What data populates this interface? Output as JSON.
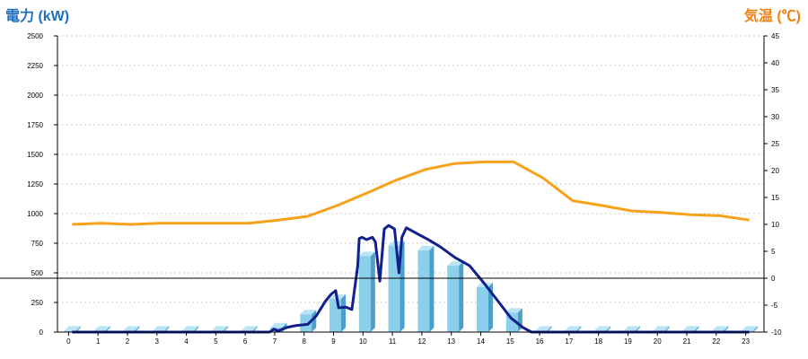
{
  "colors": {
    "power_title": "#1f6fc0",
    "temp_title": "#f08010",
    "bar_face": "#8ccfea",
    "bar_side": "#4b9fc8",
    "bar_top": "#b8e4f5",
    "power_line": "#10208c",
    "temp_line": "#f7a21a",
    "grid": "#c8c8c8",
    "axis": "#000000"
  },
  "chart_data": {
    "type": "bar",
    "title_left": "電力 (kW)",
    "title_right": "気温 (℃)",
    "grid": true,
    "y_left": {
      "range": [
        0,
        2500
      ],
      "ticks": [
        "0",
        "250",
        "500",
        "750",
        "1000",
        "1250",
        "1500",
        "1750",
        "2000",
        "2250",
        "2500"
      ]
    },
    "y_right": {
      "range": [
        -10,
        45
      ],
      "ticks": [
        "-10",
        "-5",
        "0",
        "5",
        "10",
        "15",
        "20",
        "25",
        "30",
        "35",
        "40",
        "45"
      ]
    },
    "categories": [
      "0",
      "1",
      "2",
      "3",
      "4",
      "5",
      "6",
      "7",
      "8",
      "9",
      "10",
      "11",
      "12",
      "13",
      "14",
      "15",
      "16",
      "17",
      "18",
      "19",
      "20",
      "21",
      "22",
      "23"
    ],
    "bars": {
      "axis": "left",
      "values": [
        12,
        12,
        12,
        12,
        12,
        12,
        12,
        40,
        150,
        280,
        640,
        730,
        690,
        560,
        380,
        165,
        12,
        12,
        12,
        12,
        12,
        12,
        12,
        12
      ]
    },
    "power_line": {
      "axis": "left",
      "x": [
        0,
        1,
        2,
        3,
        4,
        5,
        6,
        6.7,
        6.85,
        7,
        7.3,
        7.6,
        8.0,
        8.3,
        8.6,
        8.8,
        8.95,
        9.05,
        9.3,
        9.5,
        9.7,
        9.75,
        9.85,
        10.0,
        10.2,
        10.3,
        10.45,
        10.6,
        10.75,
        10.95,
        11.1,
        11.2,
        11.35,
        11.5,
        11.8,
        12.1,
        12.5,
        13.0,
        13.5,
        14.0,
        14.5,
        14.9,
        15.3,
        15.6,
        16,
        17,
        18,
        19,
        20,
        21,
        22,
        23
      ],
      "y": [
        0,
        0,
        0,
        0,
        0,
        0,
        0,
        0,
        25,
        10,
        40,
        55,
        65,
        140,
        260,
        320,
        350,
        205,
        210,
        190,
        560,
        790,
        800,
        780,
        800,
        760,
        430,
        870,
        900,
        870,
        500,
        800,
        880,
        860,
        820,
        780,
        720,
        630,
        560,
        410,
        250,
        120,
        40,
        0,
        0,
        0,
        0,
        0,
        0,
        0,
        0,
        0
      ]
    },
    "temperature_line": {
      "axis": "right",
      "x": [
        0,
        1,
        2,
        3,
        4,
        5,
        6,
        7,
        8,
        9,
        10,
        11,
        12,
        13,
        14,
        15,
        16,
        17,
        18,
        19,
        20,
        21,
        22,
        23
      ],
      "y": [
        10,
        10.2,
        10,
        10.2,
        10.2,
        10.2,
        10.2,
        10.8,
        11.5,
        13.5,
        15.8,
        18.2,
        20.2,
        21.3,
        21.6,
        21.6,
        18.6,
        14.4,
        13.5,
        12.5,
        12.2,
        11.8,
        11.6,
        10.8
      ]
    }
  }
}
